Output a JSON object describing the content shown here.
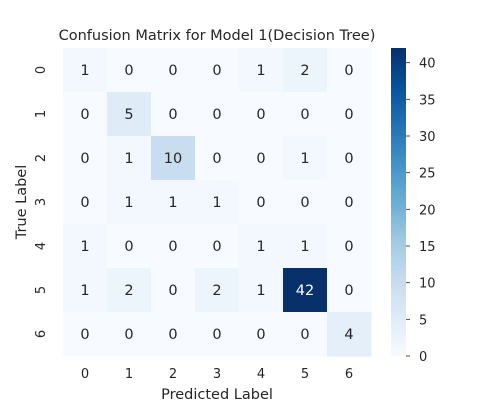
{
  "chart_data": {
    "type": "heatmap",
    "title": "Confusion Matrix for Model 1(Decision Tree)",
    "xlabel": "Predicted Label",
    "ylabel": "True Label",
    "x_categories": [
      "0",
      "1",
      "2",
      "3",
      "4",
      "5",
      "6"
    ],
    "y_categories": [
      "0",
      "1",
      "2",
      "3",
      "4",
      "5",
      "6"
    ],
    "values": [
      [
        1,
        0,
        0,
        0,
        1,
        2,
        0
      ],
      [
        0,
        5,
        0,
        0,
        0,
        0,
        0
      ],
      [
        0,
        1,
        10,
        0,
        0,
        1,
        0
      ],
      [
        0,
        1,
        1,
        1,
        0,
        0,
        0
      ],
      [
        1,
        0,
        0,
        0,
        1,
        1,
        0
      ],
      [
        1,
        2,
        0,
        2,
        1,
        42,
        0
      ],
      [
        0,
        0,
        0,
        0,
        0,
        0,
        4
      ]
    ],
    "colormap": "Blues",
    "vmin": 0,
    "vmax": 42,
    "colorbar_ticks": [
      0,
      5,
      10,
      15,
      20,
      25,
      30,
      35,
      40
    ],
    "colors": {
      "low": "#f7fbff",
      "high": "#08306b",
      "text_dark": "#262626",
      "text_light": "#ffffff"
    }
  }
}
